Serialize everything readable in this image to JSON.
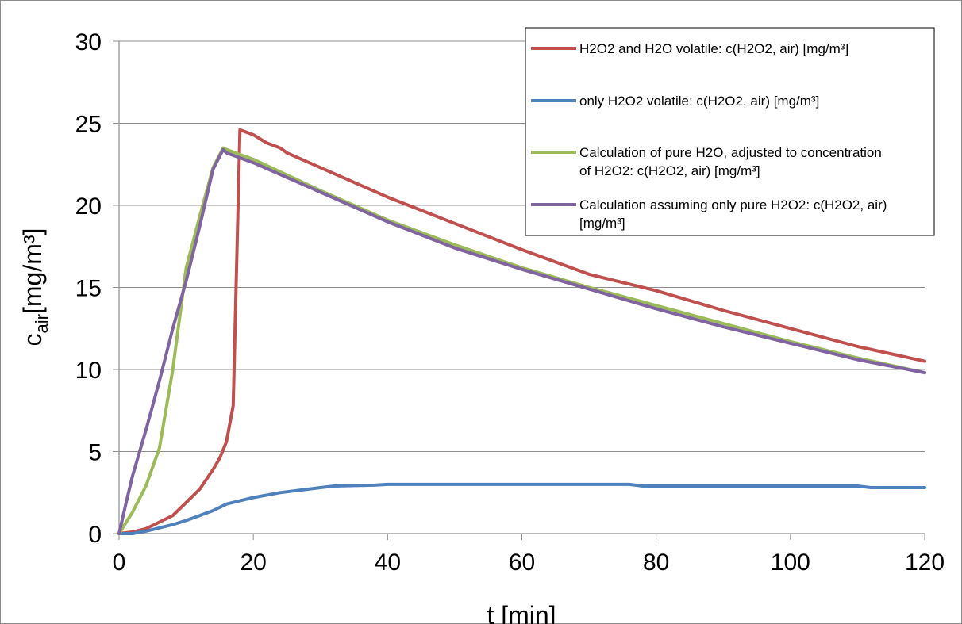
{
  "chart_data": {
    "type": "line",
    "xlabel": "t [min]",
    "ylabel_main": "c",
    "ylabel_sub": "air",
    "ylabel_unit": "[mg/m³]",
    "xlim": [
      0,
      120
    ],
    "ylim": [
      0,
      30
    ],
    "xticks": [
      0,
      20,
      40,
      60,
      80,
      100,
      120
    ],
    "yticks": [
      0,
      5,
      10,
      15,
      20,
      25,
      30
    ],
    "grid": "horizontal",
    "legend_position": "top-right",
    "series": [
      {
        "name": "H2O2 and H2O volatile: c(H2O2, air) [mg/m³]",
        "legend_lines": [
          "H2O2 and H2O volatile: c(H2O2, air) [mg/m³]"
        ],
        "color": "#c0504d",
        "x": [
          0,
          2,
          4,
          6,
          8,
          10,
          12,
          14,
          15,
          16,
          17,
          18,
          20,
          22,
          24,
          25,
          30,
          40,
          50,
          60,
          70,
          80,
          90,
          100,
          110,
          120
        ],
        "y": [
          0,
          0.1,
          0.3,
          0.7,
          1.1,
          1.9,
          2.7,
          3.9,
          4.6,
          5.6,
          7.8,
          24.6,
          24.3,
          23.8,
          23.5,
          23.2,
          22.3,
          20.5,
          18.9,
          17.3,
          15.8,
          14.8,
          13.6,
          12.5,
          11.4,
          10.5
        ]
      },
      {
        "name": "only H2O2 volatile: c(H2O2, air) [mg/m³]",
        "legend_lines": [
          "only H2O2 volatile: c(H2O2, air) [mg/m³]"
        ],
        "color": "#4f81bd",
        "x": [
          0,
          2,
          4,
          6,
          8,
          10,
          12,
          14,
          16,
          18,
          20,
          24,
          26,
          30,
          32,
          38,
          40,
          76,
          78,
          110,
          112,
          120
        ],
        "y": [
          0,
          0,
          0.15,
          0.35,
          0.55,
          0.8,
          1.1,
          1.4,
          1.8,
          2.0,
          2.2,
          2.5,
          2.6,
          2.8,
          2.9,
          2.95,
          3.0,
          3.0,
          2.9,
          2.9,
          2.8,
          2.8
        ]
      },
      {
        "name": "Calculation of pure H2O, adjusted to concentration of H2O2: c(H2O2, air) [mg/m³]",
        "legend_lines": [
          "Calculation of pure H2O, adjusted to concentration",
          "of H2O2: c(H2O2, air) [mg/m³]"
        ],
        "color": "#9bbb59",
        "x": [
          0,
          2,
          4,
          6,
          8,
          10,
          12,
          14,
          15.5,
          16,
          20,
          30,
          40,
          50,
          60,
          70,
          80,
          90,
          100,
          110,
          120
        ],
        "y": [
          0,
          1.3,
          2.9,
          5.2,
          10,
          16.2,
          19.3,
          22.3,
          23.5,
          23.4,
          22.8,
          20.9,
          19.1,
          17.6,
          16.2,
          15.0,
          13.9,
          12.8,
          11.7,
          10.7,
          9.8
        ]
      },
      {
        "name": "Calculation assuming only pure H2O2: c(H2O2, air) [mg/m³]",
        "legend_lines": [
          "Calculation assuming only pure  H2O2: c(H2O2, air)",
          "[mg/m³]"
        ],
        "color": "#8064a2",
        "x": [
          0,
          1,
          2,
          4,
          6,
          8,
          10,
          12,
          14,
          15.5,
          16,
          20,
          30,
          40,
          50,
          60,
          70,
          80,
          90,
          100,
          110,
          120
        ],
        "y": [
          0,
          1.8,
          3.5,
          6.3,
          9.3,
          12.5,
          15.4,
          18.7,
          22.2,
          23.4,
          23.2,
          22.6,
          20.8,
          19.0,
          17.4,
          16.1,
          14.9,
          13.7,
          12.6,
          11.6,
          10.6,
          9.8
        ]
      }
    ]
  }
}
